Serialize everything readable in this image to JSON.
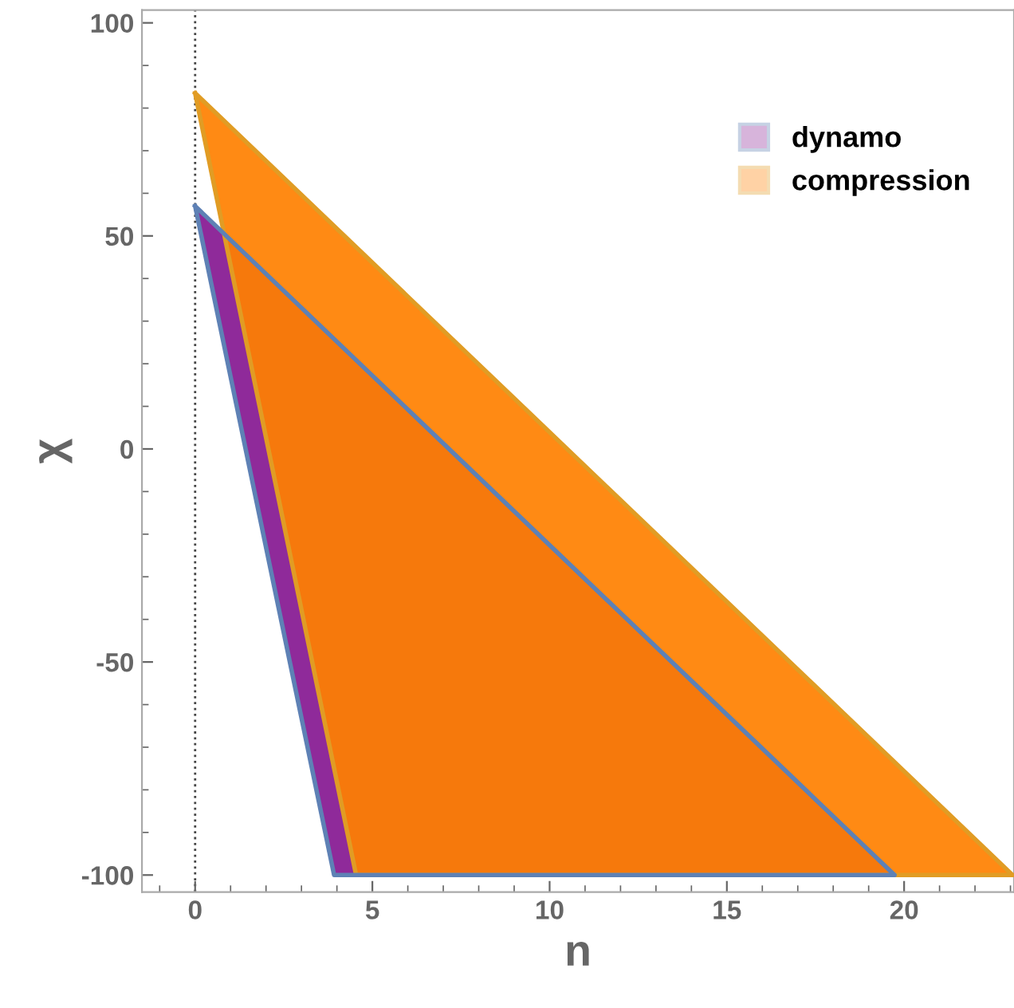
{
  "chart_data": {
    "type": "area",
    "xlabel": "n",
    "ylabel": "χ",
    "xlim": [
      -1.5,
      23.1
    ],
    "ylim": [
      -104,
      103
    ],
    "xticks": [
      0,
      5,
      10,
      15,
      20
    ],
    "yticks": [
      -100,
      -50,
      0,
      50,
      100
    ],
    "series": [
      {
        "name": "dynamo",
        "color": "#8f2a9a",
        "x": [
          0,
          19.73,
          3.92
        ],
        "values": [
          57,
          -100,
          -100
        ]
      },
      {
        "name": "compression",
        "color": "#ff8000",
        "x": [
          0,
          23.06,
          4.54
        ],
        "values": [
          83.5,
          -100,
          -100
        ]
      }
    ],
    "ref_lines": [
      {
        "axis": "x",
        "value": 0,
        "line_style": "dotted",
        "color": "#444444"
      }
    ],
    "legend": "top right",
    "grid": false
  }
}
